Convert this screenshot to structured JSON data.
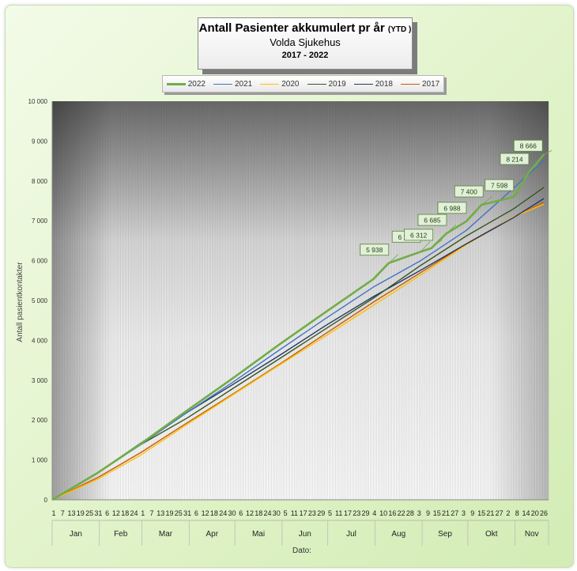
{
  "title": {
    "main": "Antall Pasienter akkumulert pr år",
    "ytd": "(YTD )",
    "subtitle": "Volda Sjukehus",
    "years": "2017 - 2022"
  },
  "colors": {
    "2022": "#70ad47",
    "2021": "#4472c4",
    "2020": "#ffc000",
    "2019": "#375623",
    "2018": "#203864",
    "2017": "#c55a11"
  },
  "chart_data": {
    "type": "line",
    "xlabel": "Dato:",
    "ylabel": "Antall pasientkontakter",
    "ylim": [
      0,
      10000
    ],
    "yticks": [
      "0",
      "1 000",
      "2 000",
      "3 000",
      "4 000",
      "5 000",
      "6 000",
      "7 000",
      "8 000",
      "9 000",
      "10 000"
    ],
    "x_day_ticks": [
      "1",
      "7",
      "13",
      "19",
      "25",
      "31",
      "6",
      "12",
      "18",
      "24",
      "1",
      "7",
      "13",
      "19",
      "25",
      "31",
      "6",
      "12",
      "18",
      "24",
      "30",
      "6",
      "12",
      "18",
      "24",
      "30",
      "5",
      "11",
      "17",
      "23",
      "29",
      "5",
      "11",
      "17",
      "23",
      "29",
      "4",
      "10",
      "16",
      "22",
      "28",
      "3",
      "9",
      "15",
      "21",
      "27",
      "3",
      "9",
      "15",
      "21",
      "27",
      "2",
      "8",
      "14",
      "20",
      "26"
    ],
    "months": [
      "Jan",
      "Feb",
      "Mar",
      "Apr",
      "Mai",
      "Jun",
      "Jul",
      "Aug",
      "Sep",
      "Okt",
      "Nov"
    ],
    "grid": true,
    "legend_position": "top",
    "x_unit": "day of year",
    "series": [
      {
        "name": "2022",
        "x": [
          1,
          31,
          59,
          90,
          120,
          151,
          181,
          212,
          222,
          243,
          250,
          260,
          273,
          283,
          304,
          314,
          324
        ],
        "y": [
          0,
          680,
          1400,
          2250,
          3060,
          3920,
          4720,
          5540,
          5938,
          6225,
          6312,
          6685,
          6988,
          7400,
          7598,
          8214,
          8666
        ]
      },
      {
        "name": "2021",
        "x": [
          1,
          31,
          59,
          90,
          120,
          151,
          181,
          212,
          243,
          273,
          304,
          324
        ],
        "y": [
          0,
          680,
          1380,
          2200,
          2960,
          3780,
          4560,
          5340,
          6000,
          6760,
          7820,
          8520
        ]
      },
      {
        "name": "2020",
        "x": [
          1,
          31,
          59,
          90,
          120,
          151,
          181,
          212,
          243,
          273,
          304,
          324
        ],
        "y": [
          0,
          520,
          1120,
          1900,
          2640,
          3400,
          4120,
          4880,
          5640,
          6400,
          7100,
          7420
        ]
      },
      {
        "name": "2019",
        "x": [
          1,
          31,
          59,
          90,
          120,
          151,
          181,
          212,
          243,
          273,
          304,
          324
        ],
        "y": [
          0,
          680,
          1380,
          2060,
          2800,
          3560,
          4300,
          5060,
          5880,
          6620,
          7300,
          7840
        ]
      },
      {
        "name": "2018",
        "x": [
          1,
          31,
          59,
          90,
          120,
          151,
          181,
          212,
          243,
          273,
          304,
          324
        ],
        "y": [
          0,
          680,
          1420,
          2200,
          2900,
          3640,
          4380,
          5100,
          5760,
          6420,
          7080,
          7560
        ]
      },
      {
        "name": "2017",
        "x": [
          1,
          31,
          59,
          90,
          120,
          151,
          181,
          212,
          243,
          273,
          304,
          324
        ],
        "y": [
          0,
          560,
          1180,
          1940,
          2660,
          3420,
          4180,
          4960,
          5700,
          6420,
          7100,
          7460
        ]
      }
    ],
    "data_labels": [
      {
        "x": 222,
        "y": 5938,
        "text": "5 938"
      },
      {
        "x": 243,
        "y": 6225,
        "text": "6 225"
      },
      {
        "x": 250,
        "y": 6312,
        "text": "6 312"
      },
      {
        "x": 260,
        "y": 6685,
        "text": "6 685"
      },
      {
        "x": 273,
        "y": 6988,
        "text": "6 988"
      },
      {
        "x": 283,
        "y": 7400,
        "text": "7 400"
      },
      {
        "x": 304,
        "y": 7598,
        "text": "7 598"
      },
      {
        "x": 314,
        "y": 8214,
        "text": "8 214"
      },
      {
        "x": 324,
        "y": 8666,
        "text": "8 666"
      }
    ]
  }
}
